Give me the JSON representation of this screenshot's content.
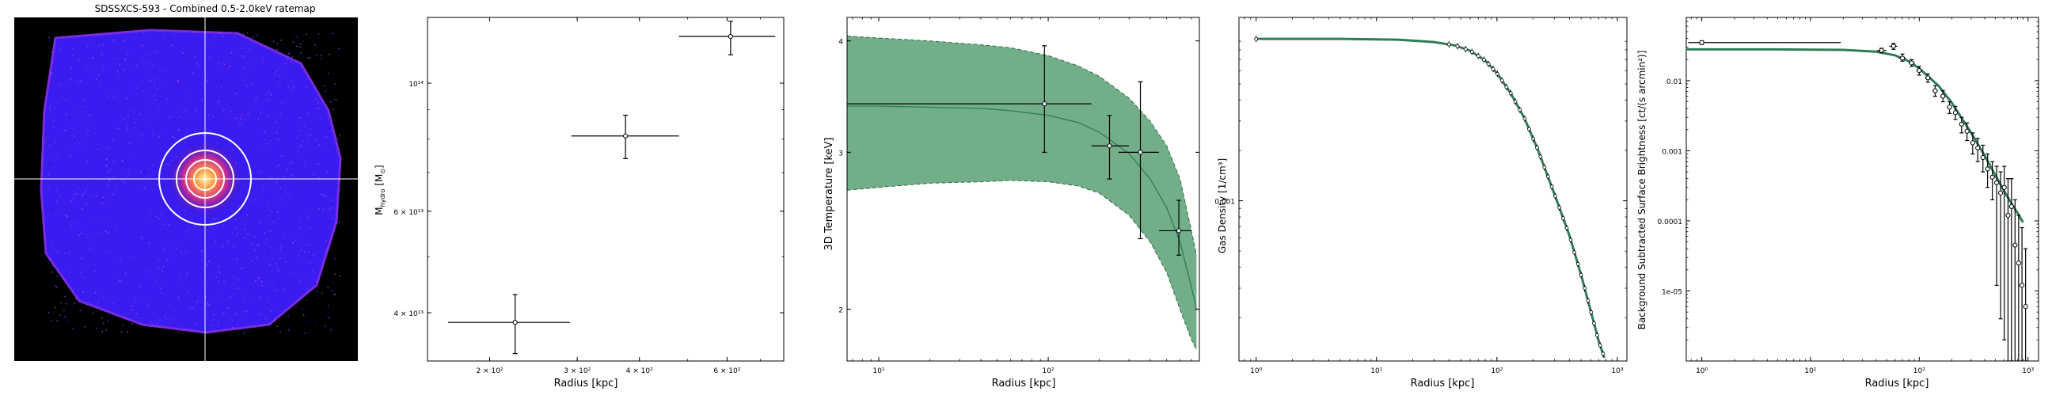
{
  "figure": {
    "background": "#ffffff",
    "colors": {
      "band_fill": "#6aaa82",
      "band_edge": "#2f6b46",
      "model_line": "#2e7d57",
      "points": "#000000",
      "map_cross": "#ffffff",
      "map_circles": "#ffffff",
      "map_background": "#000000"
    }
  },
  "chart_data": [
    {
      "type": "image",
      "panel": "ratemap",
      "title": "SDSSXCS-593 - Combined 0.5-2.0keV ratemap",
      "annuli_count": 4,
      "crosshair": true
    },
    {
      "type": "scatter",
      "panel": "hydrostatic-mass",
      "title": "",
      "xlabel": "Radius [kpc]",
      "ylabel": "M_hydro [M⊙]",
      "xscale": "log",
      "yscale": "log",
      "xlim": [
        150,
        780
      ],
      "ylim": [
        33000000000000.0,
        130000000000000.0
      ],
      "xticks": [
        {
          "v": 200,
          "label": "2 × 10²"
        },
        {
          "v": 300,
          "label": "3 × 10²"
        },
        {
          "v": 400,
          "label": "4 × 10²"
        },
        {
          "v": 600,
          "label": "6 × 10²"
        }
      ],
      "yticks": [
        {
          "v": 40000000000000.0,
          "label": "4 × 10¹³"
        },
        {
          "v": 60000000000000.0,
          "label": "6 × 10¹³"
        },
        {
          "v": 100000000000000.0,
          "label": "10¹⁴"
        }
      ],
      "points": [
        {
          "x": 225,
          "y": 38500000000000.0,
          "xerr": [
            165,
            290
          ],
          "yerr": [
            34000000000000.0,
            43000000000000.0
          ]
        },
        {
          "x": 375,
          "y": 81000000000000.0,
          "xerr": [
            292,
            480
          ],
          "yerr": [
            74000000000000.0,
            88000000000000.0
          ]
        },
        {
          "x": 610,
          "y": 120500000000000.0,
          "xerr": [
            480,
            750
          ],
          "yerr": [
            112000000000000.0,
            128000000000000.0
          ]
        }
      ],
      "grid": false
    },
    {
      "type": "line",
      "panel": "temperature",
      "title": "",
      "xlabel": "Radius [kpc]",
      "ylabel": "3D Temperature [keV]",
      "xscale": "log",
      "yscale": "log",
      "xlim": [
        6.5,
        780
      ],
      "ylim": [
        1.75,
        4.25
      ],
      "xticks": [
        {
          "v": 10,
          "label": "10¹"
        },
        {
          "v": 100,
          "label": "10²"
        }
      ],
      "yticks": [
        {
          "v": 2,
          "label": "2"
        },
        {
          "v": 3,
          "label": "3"
        },
        {
          "v": 4,
          "label": "4"
        }
      ],
      "band": {
        "x": [
          6.5,
          10,
          20,
          40,
          60,
          100,
          150,
          200,
          300,
          400,
          500,
          600,
          700,
          750
        ],
        "upper": [
          4.05,
          4.03,
          4.0,
          3.96,
          3.93,
          3.85,
          3.75,
          3.65,
          3.45,
          3.25,
          3.05,
          2.8,
          2.45,
          2.3
        ],
        "lower": [
          2.72,
          2.74,
          2.77,
          2.78,
          2.79,
          2.78,
          2.75,
          2.7,
          2.55,
          2.38,
          2.2,
          2.0,
          1.85,
          1.8
        ]
      },
      "model": {
        "x": [
          6.5,
          10,
          20,
          40,
          60,
          100,
          150,
          200,
          300,
          400,
          500,
          600,
          700,
          750
        ],
        "y": [
          3.38,
          3.38,
          3.37,
          3.36,
          3.34,
          3.3,
          3.24,
          3.16,
          2.99,
          2.8,
          2.6,
          2.38,
          2.12,
          2.0
        ]
      },
      "points": [
        {
          "x": 95,
          "y": 3.4,
          "xerr": [
            6.5,
            180
          ],
          "yerr": [
            3.0,
            3.95
          ]
        },
        {
          "x": 230,
          "y": 3.05,
          "xerr": [
            180,
            300
          ],
          "yerr": [
            2.8,
            3.3
          ]
        },
        {
          "x": 350,
          "y": 3.0,
          "xerr": [
            260,
            450
          ],
          "yerr": [
            2.4,
            3.6
          ]
        },
        {
          "x": 590,
          "y": 2.45,
          "xerr": [
            450,
            700
          ],
          "yerr": [
            2.3,
            2.65
          ]
        }
      ],
      "grid": false
    },
    {
      "type": "line",
      "panel": "gas-density",
      "title": "",
      "xlabel": "Radius [kpc]",
      "ylabel": "Gas Density [1/cm³]",
      "xscale": "log",
      "yscale": "log",
      "xlim": [
        0.72,
        1200
      ],
      "ylim": [
        0.00011,
        0.0125
      ],
      "xticks": [
        {
          "v": 1,
          "label": "10⁰"
        },
        {
          "v": 10,
          "label": "10¹"
        },
        {
          "v": 100,
          "label": "10²"
        },
        {
          "v": 1000,
          "label": "10³"
        }
      ],
      "yticks": [
        {
          "v": 0.001,
          "label": "0.001"
        }
      ],
      "model": {
        "x": [
          1,
          5,
          15,
          30,
          45,
          60,
          80,
          100,
          130,
          170,
          220,
          300,
          400,
          500,
          600,
          700,
          780
        ],
        "y": [
          0.0093,
          0.0093,
          0.0092,
          0.0089,
          0.0085,
          0.0079,
          0.0069,
          0.0058,
          0.0044,
          0.0031,
          0.002,
          0.0011,
          0.00062,
          0.00036,
          0.00022,
          0.000145,
          0.000115
        ]
      },
      "points_x": [
        1,
        40,
        47,
        55,
        62,
        70,
        78,
        85,
        93,
        101,
        110,
        120,
        130,
        142,
        155,
        170,
        185,
        200,
        215,
        230,
        248,
        265,
        285,
        305,
        330,
        355,
        380,
        410,
        440,
        470,
        500,
        535,
        570,
        605,
        640,
        680,
        720,
        760
      ],
      "grid": false
    },
    {
      "type": "scatter",
      "panel": "surface-brightness",
      "title": "",
      "xlabel": "Radius [kpc]",
      "ylabel": "Background Subtracted Surface Brightness [ct/(s arcmin²)]",
      "xscale": "log",
      "yscale": "log",
      "xlim": [
        0.72,
        1250
      ],
      "ylim": [
        1e-06,
        0.08
      ],
      "xticks": [
        {
          "v": 1,
          "label": "10⁰"
        },
        {
          "v": 10,
          "label": "10¹"
        },
        {
          "v": 100,
          "label": "10²"
        },
        {
          "v": 1000,
          "label": "10³"
        }
      ],
      "yticks": [
        {
          "v": 1e-05,
          "label": "1e-05"
        },
        {
          "v": 0.0001,
          "label": "0.0001"
        },
        {
          "v": 0.001,
          "label": "0.001"
        },
        {
          "v": 0.01,
          "label": "0.01"
        }
      ],
      "model": {
        "x": [
          0.72,
          5,
          20,
          40,
          60,
          80,
          100,
          150,
          200,
          300,
          400,
          500,
          600,
          700,
          800,
          900
        ],
        "y": [
          0.028,
          0.028,
          0.0275,
          0.026,
          0.023,
          0.019,
          0.015,
          0.0085,
          0.0048,
          0.0018,
          0.00085,
          0.00045,
          0.00027,
          0.00018,
          0.00013,
          9.5e-05
        ]
      },
      "points": [
        {
          "x": 1.0,
          "y": 0.035,
          "xerr": [
            0.75,
            19
          ],
          "yerr": [
            0.033,
            0.037
          ]
        },
        {
          "x": 45,
          "y": 0.027,
          "xerr": [
            41,
            50
          ],
          "yerr": [
            0.025,
            0.029
          ]
        },
        {
          "x": 58,
          "y": 0.031,
          "xerr": [
            53,
            63
          ],
          "yerr": [
            0.028,
            0.034
          ]
        },
        {
          "x": 70,
          "y": 0.021,
          "xerr": [
            65,
            75
          ],
          "yerr": [
            0.019,
            0.024
          ]
        },
        {
          "x": 85,
          "y": 0.018,
          "xerr": [
            80,
            91
          ],
          "yerr": [
            0.016,
            0.02
          ]
        },
        {
          "x": 100,
          "y": 0.014,
          "xerr": [
            94,
            107
          ],
          "yerr": [
            0.012,
            0.016
          ]
        },
        {
          "x": 120,
          "y": 0.011,
          "xerr": [
            113,
            128
          ],
          "yerr": [
            0.0095,
            0.0125
          ]
        },
        {
          "x": 140,
          "y": 0.0072,
          "xerr": [
            133,
            148
          ],
          "yerr": [
            0.006,
            0.0085
          ]
        },
        {
          "x": 165,
          "y": 0.006,
          "xerr": [
            156,
            175
          ],
          "yerr": [
            0.005,
            0.0072
          ]
        },
        {
          "x": 190,
          "y": 0.0042,
          "xerr": [
            180,
            200
          ],
          "yerr": [
            0.0034,
            0.005
          ]
        },
        {
          "x": 215,
          "y": 0.0035,
          "xerr": [
            205,
            226
          ],
          "yerr": [
            0.0028,
            0.0043
          ]
        },
        {
          "x": 245,
          "y": 0.0024,
          "xerr": [
            233,
            258
          ],
          "yerr": [
            0.0018,
            0.003
          ]
        },
        {
          "x": 275,
          "y": 0.0019,
          "xerr": [
            262,
            290
          ],
          "yerr": [
            0.0014,
            0.0025
          ]
        },
        {
          "x": 310,
          "y": 0.0013,
          "xerr": [
            295,
            325
          ],
          "yerr": [
            0.0009,
            0.0018
          ]
        },
        {
          "x": 345,
          "y": 0.0011,
          "xerr": [
            330,
            362
          ],
          "yerr": [
            0.0007,
            0.0015
          ]
        },
        {
          "x": 385,
          "y": 0.0008,
          "xerr": [
            368,
            402
          ],
          "yerr": [
            0.0005,
            0.0012
          ]
        },
        {
          "x": 425,
          "y": 0.00055,
          "xerr": [
            408,
            442
          ],
          "yerr": [
            0.0003,
            0.0009
          ]
        },
        {
          "x": 470,
          "y": 0.00042,
          "xerr": [
            452,
            488
          ],
          "yerr": [
            0.0002,
            0.0007
          ]
        },
        {
          "x": 515,
          "y": 0.00035,
          "xerr": [
            497,
            535
          ],
          "yerr": [
            1.2e-05,
            0.0006
          ]
        },
        {
          "x": 560,
          "y": 0.00025,
          "xerr": [
            540,
            580
          ],
          "yerr": [
            4e-06,
            0.0005
          ]
        },
        {
          "x": 605,
          "y": 0.0003,
          "xerr": [
            585,
            625
          ],
          "yerr": [
            2e-06,
            0.0006
          ]
        },
        {
          "x": 655,
          "y": 0.00012,
          "xerr": [
            633,
            677
          ],
          "yerr": [
            1e-06,
            0.0004
          ]
        },
        {
          "x": 705,
          "y": 0.00016,
          "xerr": [
            682,
            728
          ],
          "yerr": [
            1e-06,
            0.0004
          ]
        },
        {
          "x": 760,
          "y": 4.5e-05,
          "xerr": [
            735,
            785
          ],
          "yerr": [
            1e-06,
            0.0002
          ]
        },
        {
          "x": 820,
          "y": 2.5e-05,
          "xerr": [
            795,
            845
          ],
          "yerr": [
            1e-06,
            0.00012
          ]
        },
        {
          "x": 880,
          "y": 1.2e-05,
          "xerr": [
            855,
            905
          ],
          "yerr": [
            1e-06,
            8e-05
          ]
        },
        {
          "x": 950,
          "y": 6e-06,
          "xerr": [
            920,
            980
          ],
          "yerr": [
            1e-06,
            4e-05
          ]
        }
      ],
      "grid": false
    }
  ]
}
